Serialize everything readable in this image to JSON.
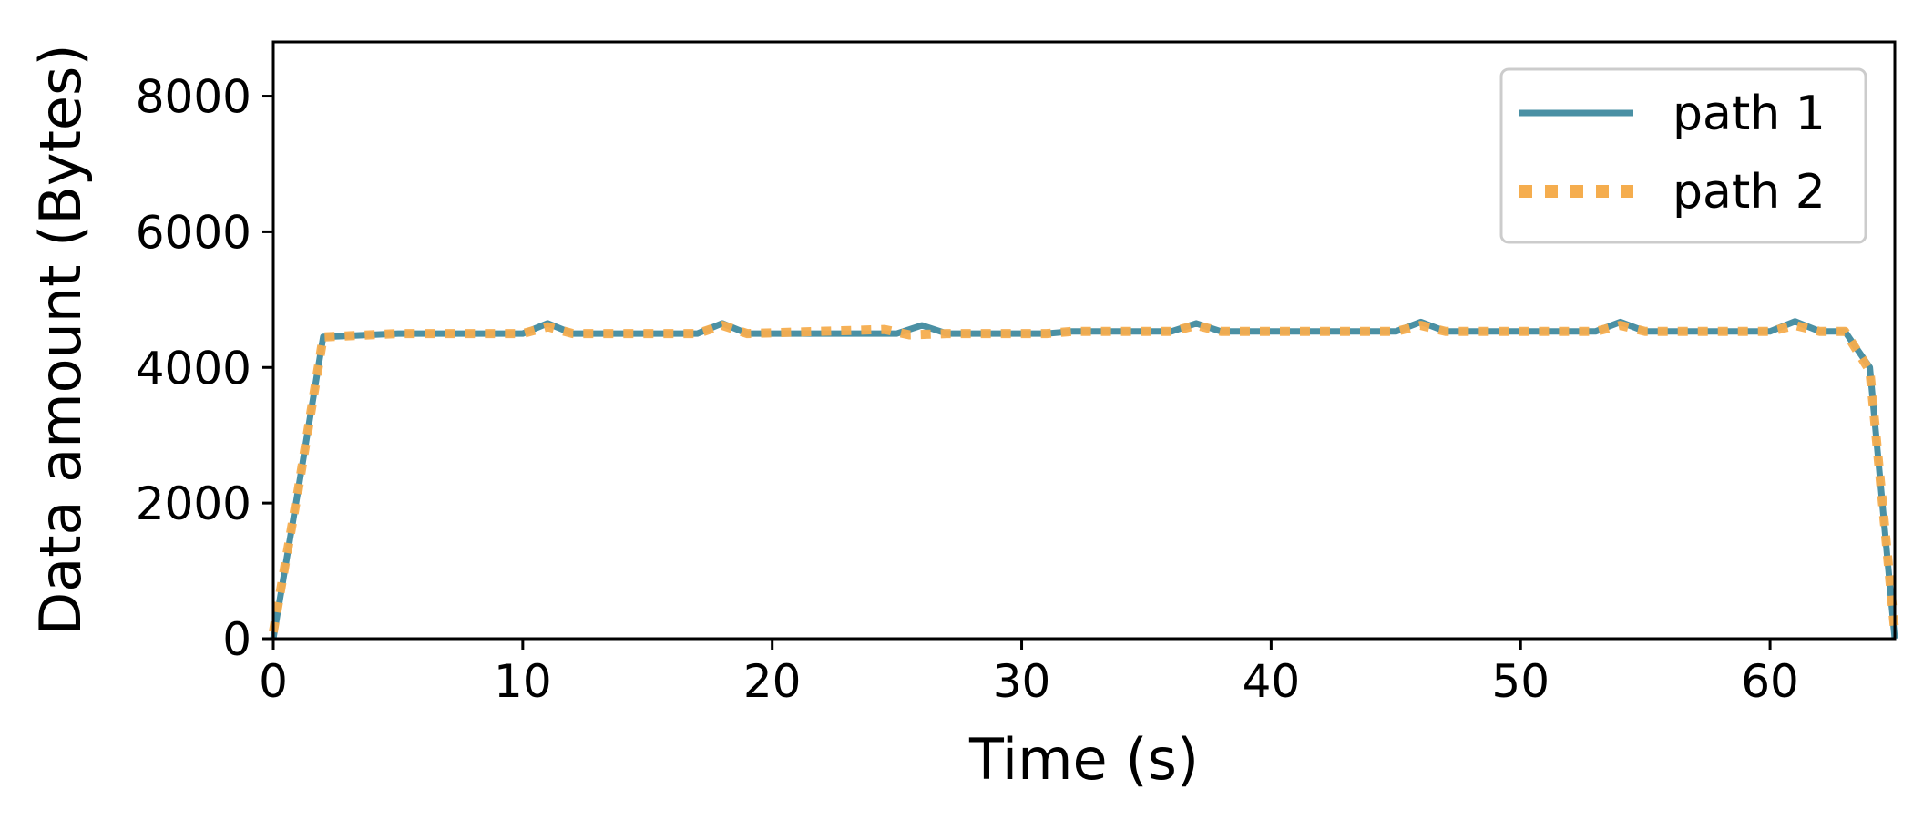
{
  "chart_data": {
    "type": "line",
    "xlabel": "Time (s)",
    "ylabel": "Data amount (Bytes)",
    "xlim": [
      0,
      65
    ],
    "ylim": [
      0,
      8800
    ],
    "xticks": [
      0,
      10,
      20,
      30,
      40,
      50,
      60
    ],
    "yticks": [
      0,
      2000,
      4000,
      6000,
      8000
    ],
    "grid": false,
    "legend_position": "top-right",
    "series": [
      {
        "name": "path 1",
        "color": "#4a90a4",
        "style": "solid",
        "x": [
          0,
          1,
          2,
          5,
          10,
          11,
          12,
          17,
          18,
          19,
          25,
          26,
          27,
          31,
          32,
          36,
          37,
          38,
          45,
          46,
          47,
          53,
          54,
          55,
          60,
          61,
          62,
          63,
          64,
          65
        ],
        "y": [
          0,
          2200,
          4450,
          4500,
          4500,
          4650,
          4500,
          4500,
          4650,
          4500,
          4500,
          4620,
          4500,
          4500,
          4530,
          4530,
          4650,
          4530,
          4530,
          4670,
          4530,
          4530,
          4670,
          4530,
          4530,
          4680,
          4530,
          4530,
          4000,
          0
        ]
      },
      {
        "name": "path 2",
        "color": "#f5ad4e",
        "style": "dotted",
        "x": [
          0,
          1,
          2,
          5,
          10,
          11,
          12,
          17,
          18,
          19,
          24.5,
          25.5,
          27,
          31,
          32,
          36,
          37,
          38,
          45,
          46,
          47,
          53,
          54,
          55,
          60,
          61,
          62,
          63,
          64,
          65
        ],
        "y": [
          100,
          2200,
          4450,
          4500,
          4500,
          4600,
          4500,
          4500,
          4620,
          4500,
          4560,
          4480,
          4500,
          4500,
          4530,
          4530,
          4620,
          4530,
          4530,
          4620,
          4530,
          4530,
          4620,
          4530,
          4530,
          4620,
          4530,
          4530,
          3950,
          100
        ]
      }
    ]
  }
}
